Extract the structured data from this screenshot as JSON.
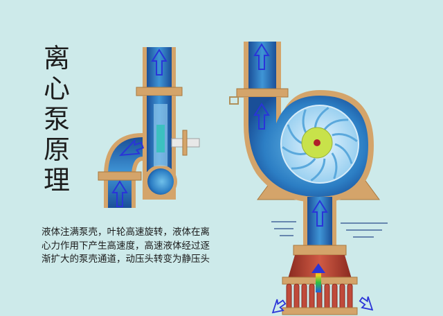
{
  "title": {
    "chars": [
      "离",
      "心",
      "泵",
      "原",
      "理"
    ]
  },
  "description": {
    "lines": [
      "液体注满泵壳，叶轮高速旋转，液体在离",
      "心力作用下产生高速度，高速液体经过逐",
      "渐扩大的泵壳通道，动压头转变为静压头"
    ]
  },
  "colors": {
    "background": "#cdeaea",
    "pipe_wall": "#d4a46a",
    "water_dark": "#1a5fa8",
    "water_light": "#4aa0d8",
    "arrow": "#2a34d8",
    "impeller_hub": "#c8e24a",
    "strainer": "#c04a3a"
  }
}
